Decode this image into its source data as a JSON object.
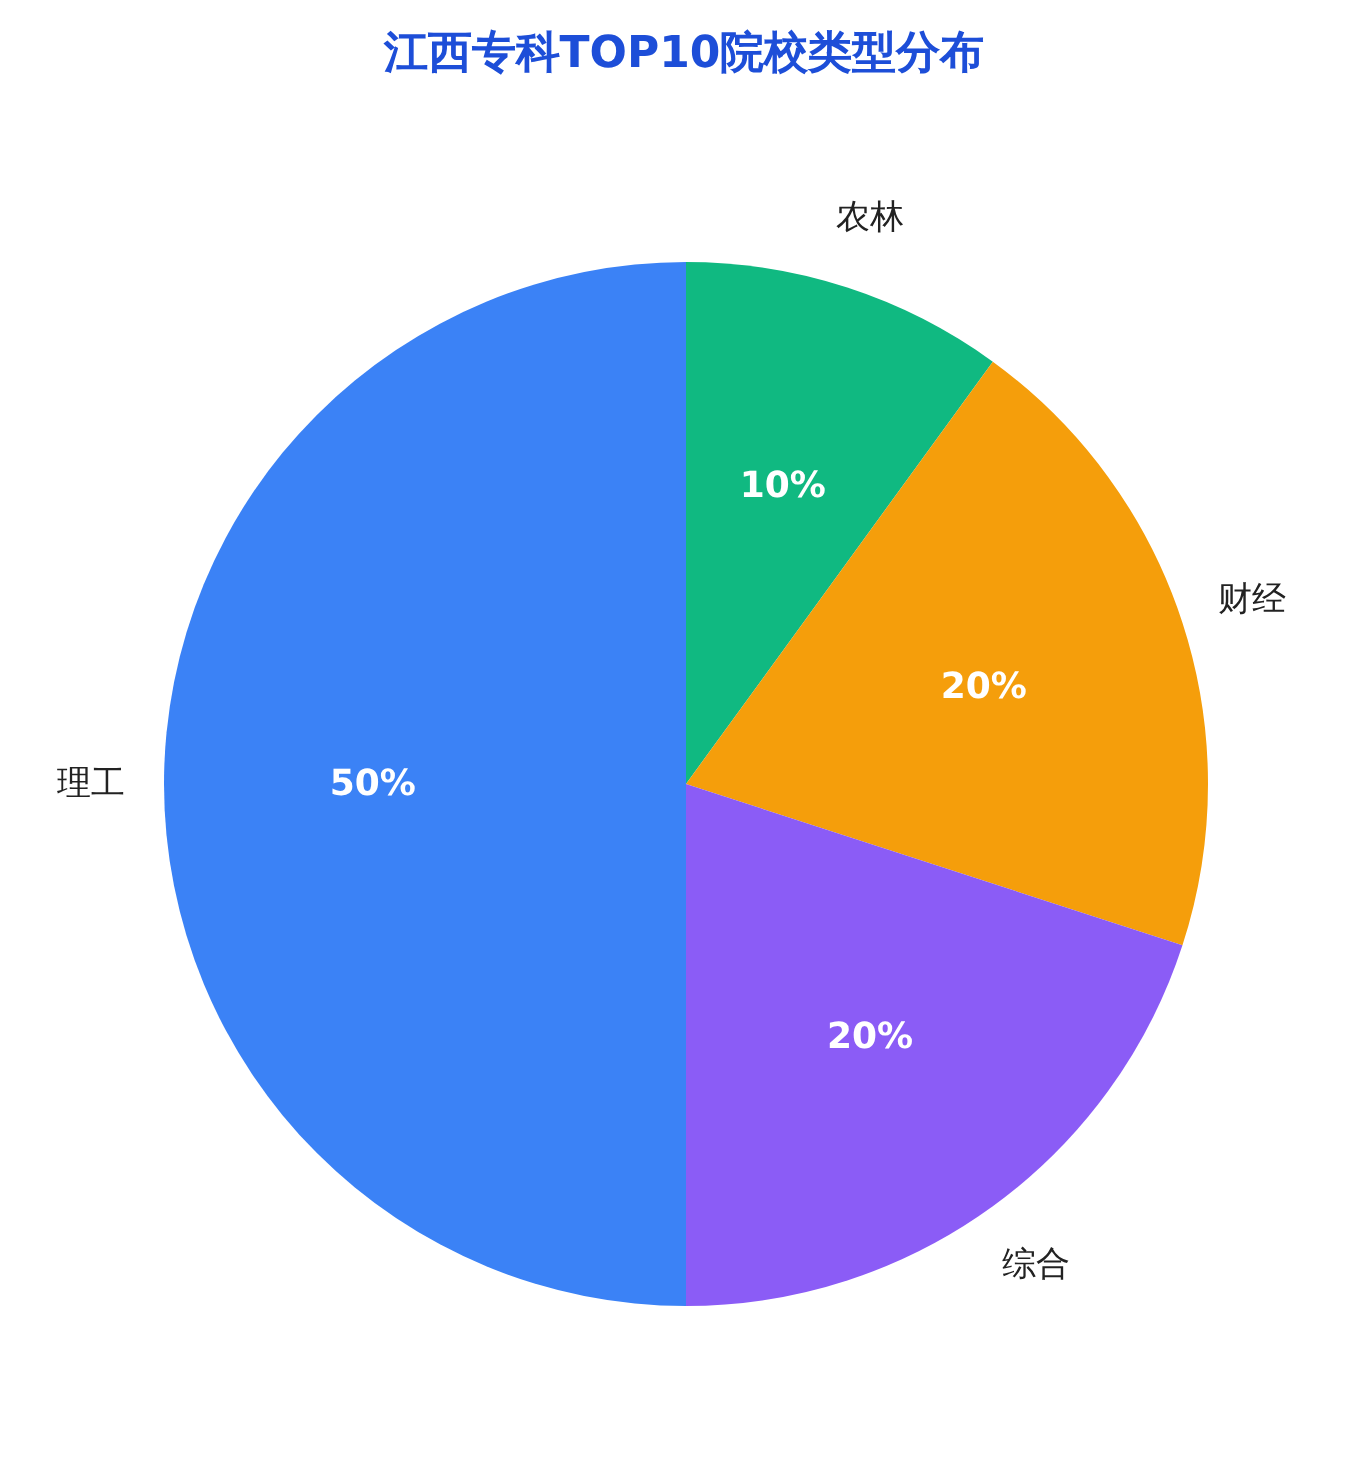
{
  "chart_data": {
    "type": "pie",
    "title": "江西专科TOP10院校类型分布",
    "categories": [
      "农林",
      "财经",
      "综合",
      "理工"
    ],
    "values": [
      10,
      20,
      20,
      50
    ],
    "colors": [
      "#10b981",
      "#f59e0b",
      "#8b5cf6",
      "#3b82f6"
    ],
    "value_labels": [
      "10%",
      "20%",
      "20%",
      "50%"
    ]
  }
}
